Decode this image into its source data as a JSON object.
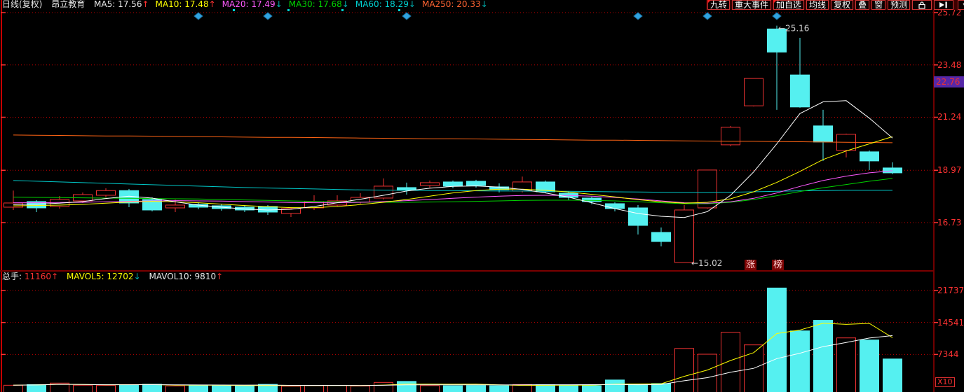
{
  "header": {
    "period_label": "日线(复权)",
    "stock_name": "昂立教育",
    "ma_values": [
      {
        "label": "MA5:",
        "value": "17.56",
        "dir": "up",
        "color_class": "c-white"
      },
      {
        "label": "MA10:",
        "value": "17.48",
        "dir": "up",
        "color_class": "c-yel"
      },
      {
        "label": "MA20:",
        "value": "17.49",
        "dir": "down",
        "color_class": "c-mag"
      },
      {
        "label": "MA30:",
        "value": "17.68",
        "dir": "down",
        "color_class": "c-grn"
      },
      {
        "label": "MA60:",
        "value": "18.29",
        "dir": "down",
        "color_class": "c-cyn"
      },
      {
        "label": "MA250:",
        "value": "20.33",
        "dir": "down",
        "color_class": "c-org"
      }
    ]
  },
  "toolbar": {
    "buttons": [
      {
        "label": "九转",
        "flag": true
      },
      {
        "label": "重大事件",
        "flag": false
      },
      {
        "label": "加自选",
        "flag": true
      },
      {
        "label": "均线",
        "flag": false
      },
      {
        "label": "复权",
        "flag": false
      },
      {
        "label": "叠",
        "flag": false
      },
      {
        "label": "窗",
        "flag": false
      },
      {
        "label": "预测",
        "flag": false
      }
    ],
    "icons": [
      {
        "name": "lock-icon"
      },
      {
        "name": "jump-to-latest-icon"
      },
      {
        "name": "dropdown-caret-icon"
      }
    ]
  },
  "price_pane": {
    "rank_tag": [
      "涨",
      "榜"
    ]
  },
  "volume_pane": {
    "header": {
      "total_label": "总手:",
      "total_value": "11160",
      "total_arrow": "↑",
      "mavol5_label": "MAVOL5:",
      "mavol5_value": "12702",
      "mavol5_arrow": "↓",
      "mavol10_label": "MAVOL10:",
      "mavol10_value": "9810",
      "mavol10_arrow": "↑"
    },
    "unit": "X10"
  },
  "chart_data": {
    "type": "candlestick",
    "title": "昂立教育 日线(复权)",
    "panes": [
      "price",
      "volume"
    ],
    "price_axis": {
      "tick_labels": [
        25.72,
        23.48,
        21.24,
        18.97,
        16.73
      ],
      "highlight_value": 22.76,
      "range": [
        14.6,
        25.85
      ]
    },
    "volume_axis": {
      "tick_labels": [
        21737,
        14541,
        7344
      ],
      "unit": "X10",
      "range": [
        0,
        23500
      ]
    },
    "annotations": [
      {
        "type": "high",
        "index": 33,
        "value": 25.16
      },
      {
        "type": "low",
        "index": 29,
        "value": 15.02
      }
    ],
    "event_marker_indexes": [
      8,
      11,
      17,
      27,
      30,
      33
    ],
    "candles": {
      "columns": [
        "open",
        "high",
        "low",
        "close",
        "volume",
        "up"
      ],
      "rows": [
        [
          17.39,
          18.1,
          17.27,
          17.57,
          420,
          1
        ],
        [
          17.63,
          17.69,
          17.18,
          17.36,
          560,
          0
        ],
        [
          17.42,
          17.87,
          17.33,
          17.72,
          900,
          1
        ],
        [
          17.66,
          18.02,
          17.57,
          17.93,
          430,
          1
        ],
        [
          17.9,
          18.2,
          17.81,
          18.1,
          380,
          1
        ],
        [
          18.1,
          18.17,
          17.39,
          17.57,
          520,
          0
        ],
        [
          17.72,
          17.81,
          17.21,
          17.27,
          640,
          0
        ],
        [
          17.36,
          17.72,
          17.18,
          17.48,
          260,
          1
        ],
        [
          17.51,
          17.6,
          17.3,
          17.39,
          330,
          0
        ],
        [
          17.45,
          17.54,
          17.24,
          17.33,
          300,
          0
        ],
        [
          17.39,
          17.48,
          17.18,
          17.27,
          280,
          0
        ],
        [
          17.42,
          17.48,
          17.06,
          17.18,
          620,
          0
        ],
        [
          17.12,
          17.39,
          16.97,
          17.33,
          200,
          1
        ],
        [
          17.36,
          17.9,
          17.27,
          17.63,
          350,
          1
        ],
        [
          17.48,
          17.9,
          17.42,
          17.66,
          400,
          1
        ],
        [
          17.6,
          17.99,
          17.54,
          17.81,
          250,
          1
        ],
        [
          17.78,
          18.62,
          17.72,
          18.29,
          1050,
          1
        ],
        [
          18.23,
          18.44,
          17.93,
          18.11,
          1280,
          0
        ],
        [
          18.32,
          18.53,
          18.23,
          18.44,
          340,
          1
        ],
        [
          18.47,
          18.53,
          18.2,
          18.29,
          300,
          0
        ],
        [
          18.5,
          18.56,
          18.23,
          18.32,
          360,
          0
        ],
        [
          18.26,
          18.41,
          18.02,
          18.14,
          300,
          0
        ],
        [
          18.08,
          18.7,
          18.02,
          18.47,
          580,
          1
        ],
        [
          18.47,
          18.53,
          17.99,
          18.05,
          540,
          0
        ],
        [
          17.99,
          18.08,
          17.69,
          17.81,
          380,
          0
        ],
        [
          17.78,
          17.84,
          17.51,
          17.63,
          320,
          0
        ],
        [
          17.54,
          17.6,
          17.21,
          17.33,
          1600,
          0
        ],
        [
          17.36,
          17.48,
          16.22,
          16.61,
          700,
          0
        ],
        [
          16.31,
          16.52,
          15.71,
          15.92,
          800,
          0
        ],
        [
          15.02,
          17.48,
          15.02,
          17.27,
          8700,
          1
        ],
        [
          17.36,
          18.98,
          17.33,
          18.98,
          7400,
          1
        ],
        [
          20.06,
          20.87,
          20.0,
          20.81,
          12340,
          1
        ],
        [
          21.73,
          22.9,
          21.7,
          22.9,
          9500,
          1
        ],
        [
          25.02,
          25.16,
          21.56,
          24.03,
          22300,
          0
        ],
        [
          23.05,
          24.64,
          21.65,
          21.68,
          12650,
          0
        ],
        [
          20.87,
          21.56,
          19.37,
          20.18,
          15030,
          0
        ],
        [
          19.82,
          20.54,
          19.52,
          20.51,
          11070,
          1
        ],
        [
          19.76,
          19.82,
          18.98,
          19.37,
          10600,
          0
        ],
        [
          19.07,
          19.31,
          18.8,
          18.86,
          6330,
          0
        ]
      ]
    },
    "ma_series": [
      {
        "name": "MA5",
        "color": "#ffffff",
        "values": [
          17.5,
          17.52,
          17.56,
          17.63,
          17.76,
          17.86,
          17.78,
          17.62,
          17.48,
          17.39,
          17.31,
          17.27,
          17.3,
          17.42,
          17.58,
          17.73,
          17.9,
          18.08,
          18.2,
          18.28,
          18.3,
          18.25,
          18.15,
          18.0,
          17.82,
          17.58,
          17.33,
          17.12,
          17.0,
          16.95,
          17.2,
          17.9,
          18.9,
          20.1,
          21.4,
          21.9,
          21.95,
          21.2,
          20.35
        ]
      },
      {
        "name": "MA10",
        "color": "#ffff00",
        "values": [
          17.45,
          17.46,
          17.48,
          17.51,
          17.56,
          17.61,
          17.64,
          17.62,
          17.58,
          17.52,
          17.46,
          17.41,
          17.37,
          17.37,
          17.42,
          17.5,
          17.6,
          17.72,
          17.86,
          18.0,
          18.1,
          18.16,
          18.16,
          18.11,
          18.04,
          17.94,
          17.83,
          17.71,
          17.62,
          17.56,
          17.6,
          17.75,
          18.05,
          18.45,
          18.92,
          19.43,
          19.8,
          20.1,
          20.41
        ]
      },
      {
        "name": "MA20",
        "color": "#ff5aff",
        "values": [
          17.58,
          17.58,
          17.59,
          17.6,
          17.62,
          17.64,
          17.66,
          17.67,
          17.66,
          17.65,
          17.63,
          17.61,
          17.59,
          17.58,
          17.58,
          17.6,
          17.63,
          17.67,
          17.72,
          17.77,
          17.82,
          17.86,
          17.89,
          17.9,
          17.89,
          17.86,
          17.81,
          17.74,
          17.66,
          17.58,
          17.56,
          17.62,
          17.77,
          18.0,
          18.28,
          18.53,
          18.72,
          18.86,
          18.95
        ]
      },
      {
        "name": "MA30",
        "color": "#00d200",
        "values": [
          17.82,
          17.81,
          17.8,
          17.79,
          17.78,
          17.77,
          17.76,
          17.75,
          17.74,
          17.72,
          17.7,
          17.68,
          17.66,
          17.64,
          17.62,
          17.61,
          17.6,
          17.6,
          17.61,
          17.62,
          17.64,
          17.66,
          17.68,
          17.69,
          17.69,
          17.68,
          17.66,
          17.62,
          17.58,
          17.54,
          17.54,
          17.6,
          17.72,
          17.88,
          18.06,
          18.22,
          18.36,
          18.5,
          18.62
        ]
      },
      {
        "name": "MA60",
        "color": "#00c8c8",
        "values": [
          18.53,
          18.5,
          18.47,
          18.44,
          18.41,
          18.38,
          18.35,
          18.32,
          18.29,
          18.26,
          18.23,
          18.21,
          18.19,
          18.17,
          18.15,
          18.13,
          18.12,
          18.11,
          18.1,
          18.1,
          18.09,
          18.08,
          18.08,
          18.07,
          18.07,
          18.06,
          18.05,
          18.04,
          18.03,
          18.02,
          18.02,
          18.03,
          18.05,
          18.07,
          18.09,
          18.1,
          18.11,
          18.11,
          18.11
        ]
      },
      {
        "name": "MA250",
        "color": "#ff6414",
        "values": [
          20.48,
          20.47,
          20.46,
          20.45,
          20.44,
          20.44,
          20.43,
          20.42,
          20.41,
          20.4,
          20.39,
          20.38,
          20.38,
          20.37,
          20.36,
          20.35,
          20.34,
          20.33,
          20.32,
          20.32,
          20.31,
          20.3,
          20.29,
          20.28,
          20.27,
          20.26,
          20.26,
          20.25,
          20.24,
          20.23,
          20.22,
          20.21,
          20.21,
          20.2,
          20.19,
          20.18,
          20.17,
          20.16,
          20.15
        ]
      }
    ],
    "vol_ma_series": [
      {
        "name": "MAVOL5",
        "period": 5,
        "color": "#ffff00"
      },
      {
        "name": "MAVOL10",
        "period": 10,
        "color": "#ffffff"
      }
    ],
    "colors": {
      "up": "#ee3232",
      "down": "#55f0f0",
      "grid": "#c40000",
      "axis_text": "#ff3232",
      "highlight_bg": "#5628a8",
      "event_marker": "#2fa3e0",
      "divider": "#7a0000",
      "annotation_text": "#cccccc"
    }
  }
}
